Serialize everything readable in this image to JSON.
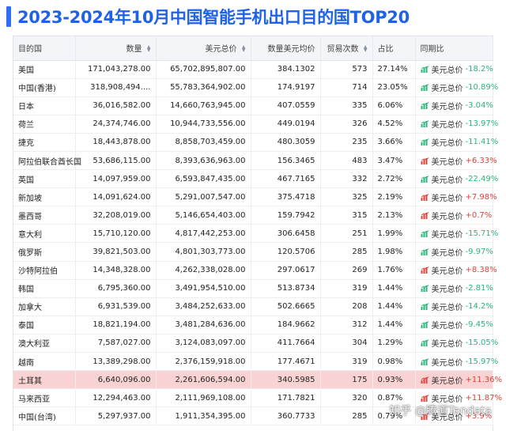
{
  "title": "2023-2024年10月中国智能手机出口目的国TOP20",
  "colors": {
    "accent": "#2f6df6",
    "down": "#2bb37a",
    "up": "#e0403a",
    "highlight_row": "#f9d3d3"
  },
  "headers": {
    "country": "目的国",
    "quantity": "数量",
    "usd_total": "美元总价",
    "unit_price": "数量美元均价",
    "trade_count": "贸易次数",
    "share": "占比",
    "yoy": "同期比"
  },
  "yoy_prefix": "美元总价",
  "rows": [
    {
      "country": "美国",
      "quantity": "171,043,278.00",
      "usd_total": "65,702,895,807.00",
      "unit_price": "384.1302",
      "trade_count": "573",
      "share": "27.14%",
      "yoy": "-18.2%",
      "dir": "down"
    },
    {
      "country": "中国(香港)",
      "quantity": "318,908,494....",
      "usd_total": "55,783,364,902.00",
      "unit_price": "174.9197",
      "trade_count": "714",
      "share": "23.05%",
      "yoy": "-10.89%",
      "dir": "down"
    },
    {
      "country": "日本",
      "quantity": "36,016,582.00",
      "usd_total": "14,660,763,945.00",
      "unit_price": "407.0559",
      "trade_count": "335",
      "share": "6.06%",
      "yoy": "-3.04%",
      "dir": "down"
    },
    {
      "country": "荷兰",
      "quantity": "24,374,746.00",
      "usd_total": "10,944,733,556.00",
      "unit_price": "449.0194",
      "trade_count": "326",
      "share": "4.52%",
      "yoy": "-13.97%",
      "dir": "down"
    },
    {
      "country": "捷克",
      "quantity": "18,443,878.00",
      "usd_total": "8,858,703,459.00",
      "unit_price": "480.3059",
      "trade_count": "235",
      "share": "3.66%",
      "yoy": "-11.41%",
      "dir": "down"
    },
    {
      "country": "阿拉伯联合酋长国",
      "quantity": "53,686,115.00",
      "usd_total": "8,393,636,963.00",
      "unit_price": "156.3465",
      "trade_count": "483",
      "share": "3.47%",
      "yoy": "+6.33%",
      "dir": "up"
    },
    {
      "country": "英国",
      "quantity": "14,097,959.00",
      "usd_total": "6,593,847,435.00",
      "unit_price": "467.7165",
      "trade_count": "332",
      "share": "2.72%",
      "yoy": "-22.49%",
      "dir": "down"
    },
    {
      "country": "新加坡",
      "quantity": "14,091,624.00",
      "usd_total": "5,291,007,547.00",
      "unit_price": "375.4718",
      "trade_count": "325",
      "share": "2.19%",
      "yoy": "+7.98%",
      "dir": "up"
    },
    {
      "country": "墨西哥",
      "quantity": "32,208,019.00",
      "usd_total": "5,146,654,403.00",
      "unit_price": "159.7942",
      "trade_count": "315",
      "share": "2.13%",
      "yoy": "+0.7%",
      "dir": "up"
    },
    {
      "country": "意大利",
      "quantity": "15,710,120.00",
      "usd_total": "4,817,442,253.00",
      "unit_price": "306.6458",
      "trade_count": "251",
      "share": "1.99%",
      "yoy": "-15.71%",
      "dir": "down"
    },
    {
      "country": "俄罗斯",
      "quantity": "39,821,503.00",
      "usd_total": "4,801,303,773.00",
      "unit_price": "120.5706",
      "trade_count": "285",
      "share": "1.98%",
      "yoy": "-9.97%",
      "dir": "down"
    },
    {
      "country": "沙特阿拉伯",
      "quantity": "14,348,328.00",
      "usd_total": "4,262,338,028.00",
      "unit_price": "297.0617",
      "trade_count": "269",
      "share": "1.76%",
      "yoy": "+8.38%",
      "dir": "up"
    },
    {
      "country": "韩国",
      "quantity": "6,795,360.00",
      "usd_total": "3,491,954,510.00",
      "unit_price": "513.8734",
      "trade_count": "319",
      "share": "1.44%",
      "yoy": "-2.81%",
      "dir": "down"
    },
    {
      "country": "加拿大",
      "quantity": "6,931,539.00",
      "usd_total": "3,484,252,633.00",
      "unit_price": "502.6665",
      "trade_count": "208",
      "share": "1.44%",
      "yoy": "-14.2%",
      "dir": "down"
    },
    {
      "country": "泰国",
      "quantity": "18,821,194.00",
      "usd_total": "3,481,284,636.00",
      "unit_price": "184.9662",
      "trade_count": "312",
      "share": "1.44%",
      "yoy": "-9.45%",
      "dir": "down"
    },
    {
      "country": "澳大利亚",
      "quantity": "7,587,027.00",
      "usd_total": "3,124,083,097.00",
      "unit_price": "411.7664",
      "trade_count": "304",
      "share": "1.29%",
      "yoy": "-15.05%",
      "dir": "down"
    },
    {
      "country": "越南",
      "quantity": "13,389,298.00",
      "usd_total": "2,376,159,918.00",
      "unit_price": "177.4671",
      "trade_count": "319",
      "share": "0.98%",
      "yoy": "-15.97%",
      "dir": "down"
    },
    {
      "country": "土耳其",
      "quantity": "6,640,096.00",
      "usd_total": "2,261,606,594.00",
      "unit_price": "340.5985",
      "trade_count": "175",
      "share": "0.93%",
      "yoy": "+11.36%",
      "dir": "up",
      "highlight": true
    },
    {
      "country": "马来西亚",
      "quantity": "12,294,463.00",
      "usd_total": "2,111,969,108.00",
      "unit_price": "171.7821",
      "trade_count": "320",
      "share": "0.87%",
      "yoy": "+11.87%",
      "dir": "up"
    },
    {
      "country": "中国(台湾)",
      "quantity": "5,297,937.00",
      "usd_total": "1,911,354,395.00",
      "unit_price": "360.7733",
      "trade_count": "285",
      "share": "0.79%",
      "yoy": "+3.9%",
      "dir": "up"
    }
  ],
  "watermark": "知乎 @腾道Tendata"
}
